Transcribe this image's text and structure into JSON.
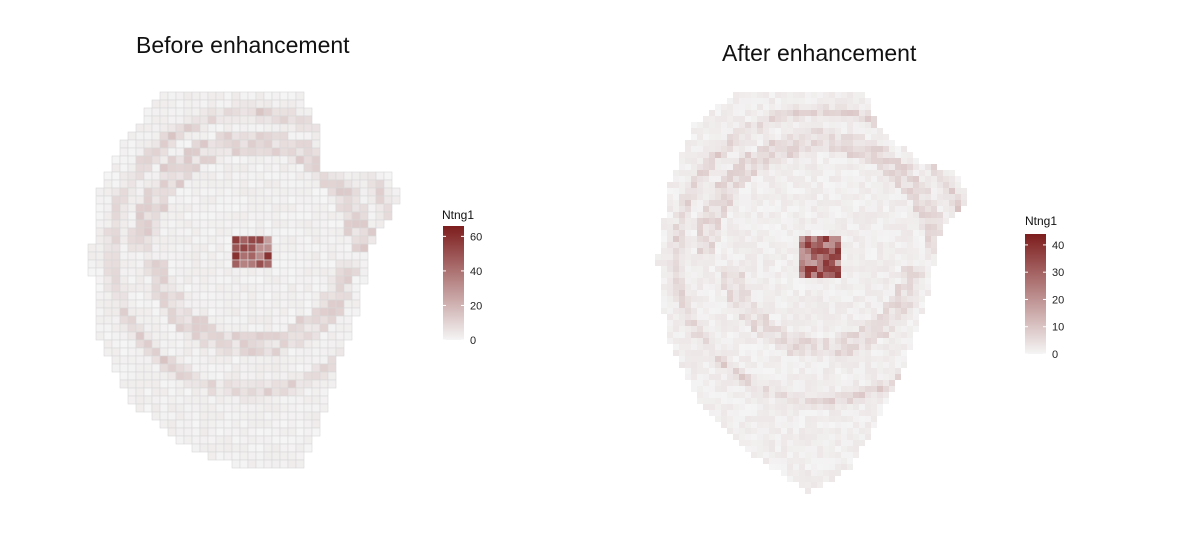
{
  "chart_data": [
    {
      "type": "heatmap",
      "title": "Before enhancement",
      "legend": {
        "title": "Ntng1",
        "ticks": [
          "0",
          "20",
          "40",
          "60"
        ],
        "tick_values": [
          0,
          20,
          40,
          60
        ],
        "range": [
          0,
          66
        ],
        "colors": [
          "#f5f5f5",
          "#7d1d1d"
        ],
        "placement": "right"
      },
      "grid_lines": true,
      "features": {
        "hotspot_peak": 66,
        "ring_level": 14,
        "band_level": 10
      }
    },
    {
      "type": "heatmap",
      "title": "After enhancement",
      "legend": {
        "title": "Ntng1",
        "ticks": [
          "0",
          "10",
          "20",
          "30",
          "40"
        ],
        "tick_values": [
          0,
          10,
          20,
          30,
          40
        ],
        "range": [
          0,
          44
        ],
        "colors": [
          "#f5f5f5",
          "#7d1d1d"
        ],
        "placement": "right"
      },
      "grid_lines": false,
      "features": {
        "hotspot_peak": 42,
        "ring_level": 9,
        "band_level": 6
      }
    }
  ]
}
